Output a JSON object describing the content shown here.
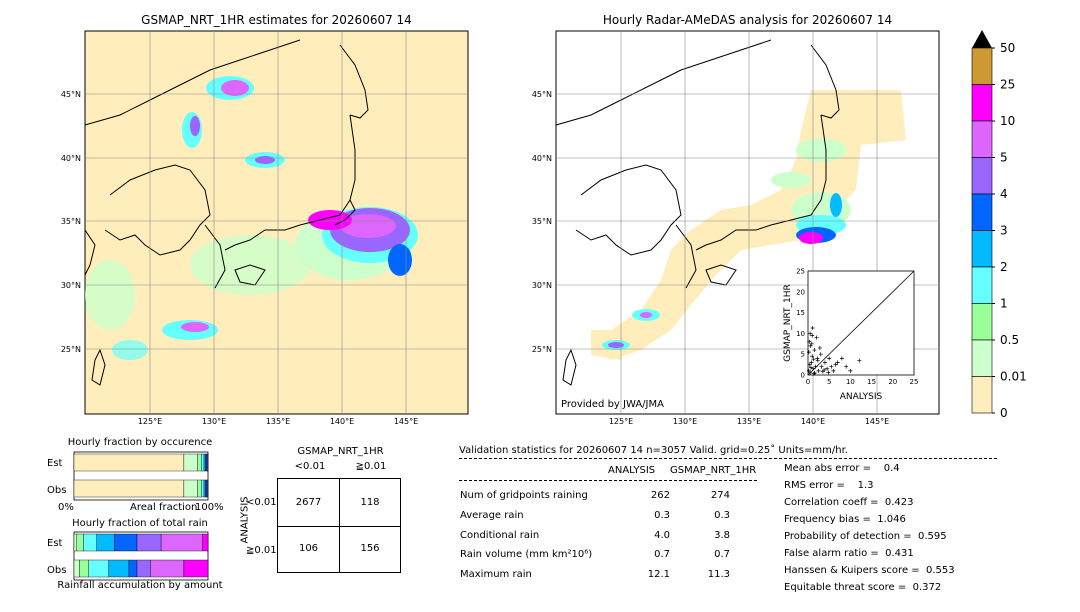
{
  "left_map": {
    "title": "GSMAP_NRT_1HR estimates for 20260607 14",
    "lat_labels": [
      "45°N",
      "40°N",
      "35°N",
      "30°N",
      "25°N"
    ],
    "lon_labels": [
      "125°E",
      "130°E",
      "135°E",
      "140°E",
      "145°E"
    ]
  },
  "right_map": {
    "title": "Hourly Radar-AMeDAS analysis for 20260607 14",
    "lat_labels": [
      "45°N",
      "40°N",
      "35°N",
      "30°N",
      "25°N"
    ],
    "lon_labels": [
      "125°E",
      "130°E",
      "135°E",
      "140°E",
      "145°E"
    ],
    "credit": "Provided by JWA/JMA"
  },
  "colorbar": {
    "labels": [
      "50",
      "25",
      "10",
      "5",
      "4",
      "3",
      "2",
      "1",
      "0.5",
      "0.01",
      "0"
    ],
    "colors": [
      "#cc9933",
      "#ff00ff",
      "#dd66ff",
      "#9966ff",
      "#0066ff",
      "#00bbff",
      "#66ffff",
      "#99ff99",
      "#ccffcc",
      "#ffeebb"
    ]
  },
  "scatter": {
    "xlabel": "ANALYSIS",
    "ylabel": "GSMAP_NRT_1HR",
    "ticks": [
      "0",
      "5",
      "10",
      "15",
      "20",
      "25"
    ]
  },
  "chart_data": {
    "type": "scatter",
    "xlim": [
      0,
      25
    ],
    "ylim": [
      0,
      25
    ],
    "x": [
      0.2,
      0.4,
      0.5,
      0.8,
      1.0,
      1.2,
      1.5,
      1.8,
      2.0,
      2.3,
      2.5,
      3.0,
      3.2,
      3.5,
      4.0,
      4.5,
      5.0,
      5.5,
      6.0,
      7.0,
      8.0,
      9.0,
      10.0,
      12.1,
      0.3,
      0.6,
      1.1,
      1.6,
      2.2,
      2.8,
      0.5,
      1.0,
      1.4,
      0.2,
      0.7,
      3.8,
      4.8,
      6.5,
      0.9,
      1.3
    ],
    "y": [
      1.0,
      2.5,
      0.5,
      3.0,
      4.5,
      1.5,
      6.0,
      2.0,
      9.0,
      3.5,
      1.0,
      5.0,
      2.0,
      0.8,
      3.0,
      1.5,
      4.0,
      2.0,
      1.0,
      3.0,
      4.0,
      2.0,
      1.0,
      3.5,
      8.0,
      7.0,
      11.3,
      0.5,
      4.0,
      6.5,
      10.0,
      9.5,
      0.3,
      5.5,
      1.8,
      1.2,
      0.6,
      2.5,
      7.5,
      3.8
    ]
  },
  "occurrence": {
    "title": "Hourly fraction by occurence",
    "rows": [
      "Est",
      "Obs"
    ],
    "xmin": "0%",
    "xmid": "Areal fraction",
    "xmax": "100%",
    "est": [
      0.82,
      0.1,
      0.03,
      0.02,
      0.01,
      0.01,
      0.005,
      0.005
    ],
    "obs": [
      0.82,
      0.1,
      0.03,
      0.02,
      0.01,
      0.01,
      0.005,
      0.005
    ]
  },
  "total_rain": {
    "title": "Hourly fraction of total rain",
    "rows": [
      "Est",
      "Obs"
    ],
    "footer": "Rainfall accumulation by amount",
    "est": [
      0.02,
      0.05,
      0.1,
      0.13,
      0.17,
      0.18,
      0.31,
      0.04
    ],
    "obs": [
      0.04,
      0.07,
      0.15,
      0.15,
      0.06,
      0.1,
      0.25,
      0.18
    ]
  },
  "contingency": {
    "title": "GSMAP_NRT_1HR",
    "col_labels": [
      "<0.01",
      "≧0.01"
    ],
    "row_axis": "ANALYSIS",
    "row_labels": [
      "<0.01",
      "≧0.01"
    ],
    "cells": [
      "2677",
      "118",
      "106",
      "156"
    ]
  },
  "validation": {
    "header": "Validation statistics for 20260607 14  n=3057 Valid. grid=0.25˚ Units=mm/hr.",
    "col_analysis": "ANALYSIS",
    "col_gsmap": "GSMAP_NRT_1HR",
    "rows": [
      {
        "label": "Num of gridpoints raining",
        "a": "262",
        "g": "274"
      },
      {
        "label": "Average rain",
        "a": "0.3",
        "g": "0.3"
      },
      {
        "label": "Conditional rain",
        "a": "4.0",
        "g": "3.8"
      },
      {
        "label": "Rain volume (mm km²10⁶)",
        "a": "0.7",
        "g": "0.7"
      },
      {
        "label": "Maximum rain",
        "a": "12.1",
        "g": "11.3"
      }
    ],
    "scores": [
      "Mean abs error =    0.4",
      "RMS error =    1.3",
      "Correlation coeff =  0.423",
      "Frequency bias =  1.046",
      "Probability of detection =  0.595",
      "False alarm ratio =  0.431",
      "Hanssen & Kuipers score =  0.553",
      "Equitable threat score =  0.372"
    ]
  }
}
